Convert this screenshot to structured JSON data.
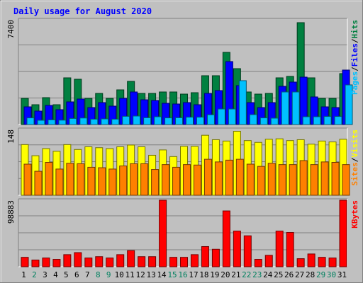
{
  "chart_data": [
    {
      "type": "bar",
      "title": "Daily usage for August 2020",
      "scale_label": "7400",
      "ymax": 7400,
      "categories": [
        "1",
        "2",
        "3",
        "4",
        "5",
        "6",
        "7",
        "8",
        "9",
        "10",
        "11",
        "12",
        "13",
        "14",
        "15",
        "16",
        "17",
        "18",
        "19",
        "20",
        "21",
        "22",
        "23",
        "24",
        "25",
        "26",
        "27",
        "28",
        "29",
        "30",
        "31"
      ],
      "weekend_days": [
        "2",
        "8",
        "9",
        "15",
        "16",
        "22",
        "23",
        "29",
        "30"
      ],
      "series": [
        {
          "name": "Hits",
          "color": "#008040",
          "values": [
            1850,
            1400,
            1900,
            1400,
            3300,
            3200,
            1850,
            2200,
            1850,
            2450,
            3050,
            2200,
            2200,
            2300,
            2300,
            2150,
            2250,
            3450,
            3450,
            5100,
            3950,
            2300,
            2150,
            2200,
            3300,
            3400,
            7200,
            3300,
            1850,
            1850,
            3600
          ]
        },
        {
          "name": "Files",
          "color": "#0000ff",
          "values": [
            1250,
            950,
            1350,
            1050,
            1600,
            1800,
            1200,
            1550,
            1300,
            1850,
            2300,
            1750,
            1700,
            1500,
            1450,
            1550,
            1400,
            2200,
            2400,
            4450,
            2750,
            1550,
            1200,
            1550,
            2700,
            3000,
            3350,
            1950,
            1250,
            1200,
            3850
          ]
        },
        {
          "name": "Pages",
          "color": "#00c0ff",
          "values": [
            470,
            300,
            330,
            310,
            430,
            460,
            380,
            400,
            380,
            580,
            600,
            480,
            550,
            470,
            480,
            520,
            520,
            690,
            1100,
            1100,
            3100,
            700,
            470,
            450,
            2300,
            2300,
            550,
            550,
            570,
            570,
            2800
          ]
        }
      ],
      "legend": [
        "Pages",
        "Files",
        "Hits"
      ]
    },
    {
      "type": "bar",
      "scale_label": "148",
      "ymax": 148,
      "categories": [
        "1",
        "2",
        "3",
        "4",
        "5",
        "6",
        "7",
        "8",
        "9",
        "10",
        "11",
        "12",
        "13",
        "14",
        "15",
        "16",
        "17",
        "18",
        "19",
        "20",
        "21",
        "22",
        "23",
        "24",
        "25",
        "26",
        "27",
        "28",
        "29",
        "30",
        "31"
      ],
      "series": [
        {
          "name": "Visits",
          "color": "#ffff00",
          "values": [
            114,
            89,
            105,
            99,
            114,
            103,
            109,
            107,
            105,
            109,
            113,
            109,
            90,
            102,
            87,
            110,
            110,
            135,
            125,
            122,
            144,
            123,
            119,
            126,
            127,
            123,
            125,
            115,
            122,
            120,
            126
          ]
        },
        {
          "name": "Sites",
          "color": "#ff8000",
          "values": [
            70,
            54,
            74,
            59,
            72,
            71,
            63,
            62,
            59,
            66,
            71,
            71,
            58,
            69,
            63,
            69,
            68,
            81,
            75,
            79,
            81,
            70,
            65,
            72,
            69,
            69,
            78,
            69,
            75,
            74,
            69
          ]
        }
      ],
      "legend": [
        "Sites",
        "Visits"
      ]
    },
    {
      "type": "bar",
      "scale_label": "98883",
      "ymax": 98883,
      "categories": [
        "1",
        "2",
        "3",
        "4",
        "5",
        "6",
        "7",
        "8",
        "9",
        "10",
        "11",
        "12",
        "13",
        "14",
        "15",
        "16",
        "17",
        "18",
        "19",
        "20",
        "21",
        "22",
        "23",
        "24",
        "25",
        "26",
        "27",
        "28",
        "29",
        "30",
        "31"
      ],
      "series": [
        {
          "name": "KBytes",
          "color": "#ff0000",
          "values": [
            14000,
            10000,
            13000,
            11000,
            18000,
            21000,
            13000,
            15000,
            13000,
            18000,
            24000,
            15000,
            15000,
            98883,
            14000,
            14000,
            18000,
            30000,
            26000,
            83000,
            53000,
            46000,
            11000,
            17000,
            53000,
            51000,
            12000,
            19000,
            14000,
            13000,
            98883
          ]
        }
      ],
      "legend": [
        "KBytes"
      ]
    }
  ]
}
